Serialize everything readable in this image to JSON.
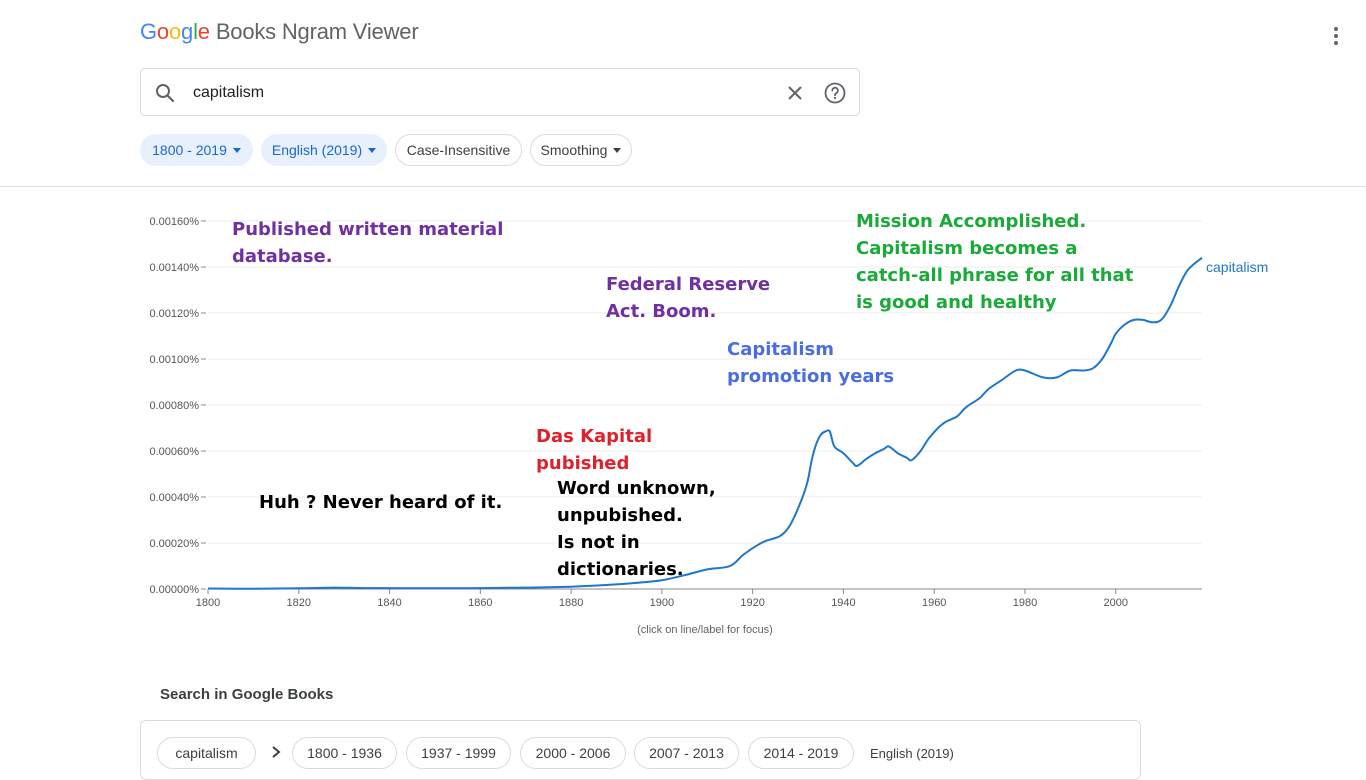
{
  "header": {
    "logo_letters": [
      "G",
      "o",
      "o",
      "g",
      "l",
      "e"
    ],
    "logo_rest": "Books Ngram Viewer"
  },
  "search": {
    "value": "capitalism"
  },
  "filters": [
    {
      "label": "1800 - 2019",
      "selected": true,
      "dropdown": true
    },
    {
      "label": "English (2019)",
      "selected": true,
      "dropdown": true
    },
    {
      "label": "Case-Insensitive",
      "selected": false,
      "dropdown": false
    },
    {
      "label": "Smoothing",
      "selected": false,
      "dropdown": true
    }
  ],
  "chart_data": {
    "type": "line",
    "xlim": [
      1800,
      2019
    ],
    "ylim": [
      0,
      0.0016
    ],
    "y_unit": "%",
    "x_ticks": [
      "1800",
      "1820",
      "1840",
      "1860",
      "1880",
      "1900",
      "1920",
      "1940",
      "1960",
      "1980",
      "2000"
    ],
    "y_ticks": [
      "0.00000%",
      "0.00020%",
      "0.00040%",
      "0.00060%",
      "0.00080%",
      "0.00100%",
      "0.00120%",
      "0.00140%",
      "0.00160%"
    ],
    "grid": true,
    "line_color": "#1f77c8",
    "series": [
      {
        "name": "capitalism",
        "points": [
          [
            1800,
            2e-06
          ],
          [
            1810,
            1e-06
          ],
          [
            1820,
            3e-06
          ],
          [
            1828,
            6e-06
          ],
          [
            1835,
            4e-06
          ],
          [
            1850,
            3e-06
          ],
          [
            1860,
            4e-06
          ],
          [
            1870,
            6e-06
          ],
          [
            1880,
            1e-05
          ],
          [
            1885,
            1.5e-05
          ],
          [
            1890,
            2e-05
          ],
          [
            1895,
            2.8e-05
          ],
          [
            1900,
            3.8e-05
          ],
          [
            1905,
            6e-05
          ],
          [
            1910,
            8.5e-05
          ],
          [
            1915,
            0.0001
          ],
          [
            1918,
            0.00015
          ],
          [
            1921,
            0.00019
          ],
          [
            1923,
            0.00021
          ],
          [
            1926,
            0.00023
          ],
          [
            1928,
            0.00027
          ],
          [
            1930,
            0.00035
          ],
          [
            1932,
            0.00046
          ],
          [
            1933,
            0.00056
          ],
          [
            1934,
            0.00063
          ],
          [
            1935,
            0.00067
          ],
          [
            1936,
            0.000685
          ],
          [
            1937,
            0.000685
          ],
          [
            1938,
            0.00062
          ],
          [
            1940,
            0.00059
          ],
          [
            1942,
            0.00055
          ],
          [
            1943,
            0.000535
          ],
          [
            1945,
            0.000565
          ],
          [
            1947,
            0.00059
          ],
          [
            1949,
            0.00061
          ],
          [
            1950,
            0.00062
          ],
          [
            1952,
            0.00059
          ],
          [
            1954,
            0.00057
          ],
          [
            1955,
            0.00056
          ],
          [
            1957,
            0.0006
          ],
          [
            1959,
            0.00066
          ],
          [
            1962,
            0.00072
          ],
          [
            1965,
            0.00075
          ],
          [
            1967,
            0.00079
          ],
          [
            1970,
            0.00083
          ],
          [
            1972,
            0.00087
          ],
          [
            1975,
            0.00091
          ],
          [
            1978,
            0.00095
          ],
          [
            1980,
            0.00095
          ],
          [
            1984,
            0.00092
          ],
          [
            1987,
            0.00092
          ],
          [
            1990,
            0.00095
          ],
          [
            1993,
            0.00095
          ],
          [
            1995,
            0.00096
          ],
          [
            1997,
            0.001
          ],
          [
            1999,
            0.00107
          ],
          [
            2000,
            0.00111
          ],
          [
            2002,
            0.00115
          ],
          [
            2004,
            0.00117
          ],
          [
            2006,
            0.00117
          ],
          [
            2008,
            0.00116
          ],
          [
            2010,
            0.00117
          ],
          [
            2012,
            0.00123
          ],
          [
            2014,
            0.00132
          ],
          [
            2016,
            0.00139
          ],
          [
            2019,
            0.00144
          ]
        ]
      }
    ],
    "annotations": [
      {
        "lines": [
          "Published written material",
          "database."
        ],
        "color": "#7030a0"
      },
      {
        "lines": [
          "Federal Reserve",
          "Act. Boom."
        ],
        "color": "#7030a0"
      },
      {
        "lines": [
          "Mission Accomplished.",
          "Capitalism becomes a",
          "catch-all phrase for all that",
          "is good and healthy"
        ],
        "color": "#1aaa3a"
      },
      {
        "lines": [
          "Capitalism",
          "promotion years"
        ],
        "color": "#4a6ee0"
      },
      {
        "lines": [
          "Das Kapital",
          "pubished"
        ],
        "color": "#e0202a"
      },
      {
        "lines": [
          "Huh ? Never heard of it."
        ],
        "color": "#000000"
      },
      {
        "lines": [
          "Word unknown,",
          "unpubished.",
          "Is not in",
          "dictionaries."
        ],
        "color": "#000000"
      }
    ]
  },
  "chart_hint": "(click on line/label for focus)",
  "books": {
    "title": "Search in Google Books",
    "term": "capitalism",
    "ranges": [
      "1800 - 1936",
      "1937 - 1999",
      "2000 - 2006",
      "2007 - 2013",
      "2014 - 2019"
    ],
    "corpus": "English (2019)"
  }
}
